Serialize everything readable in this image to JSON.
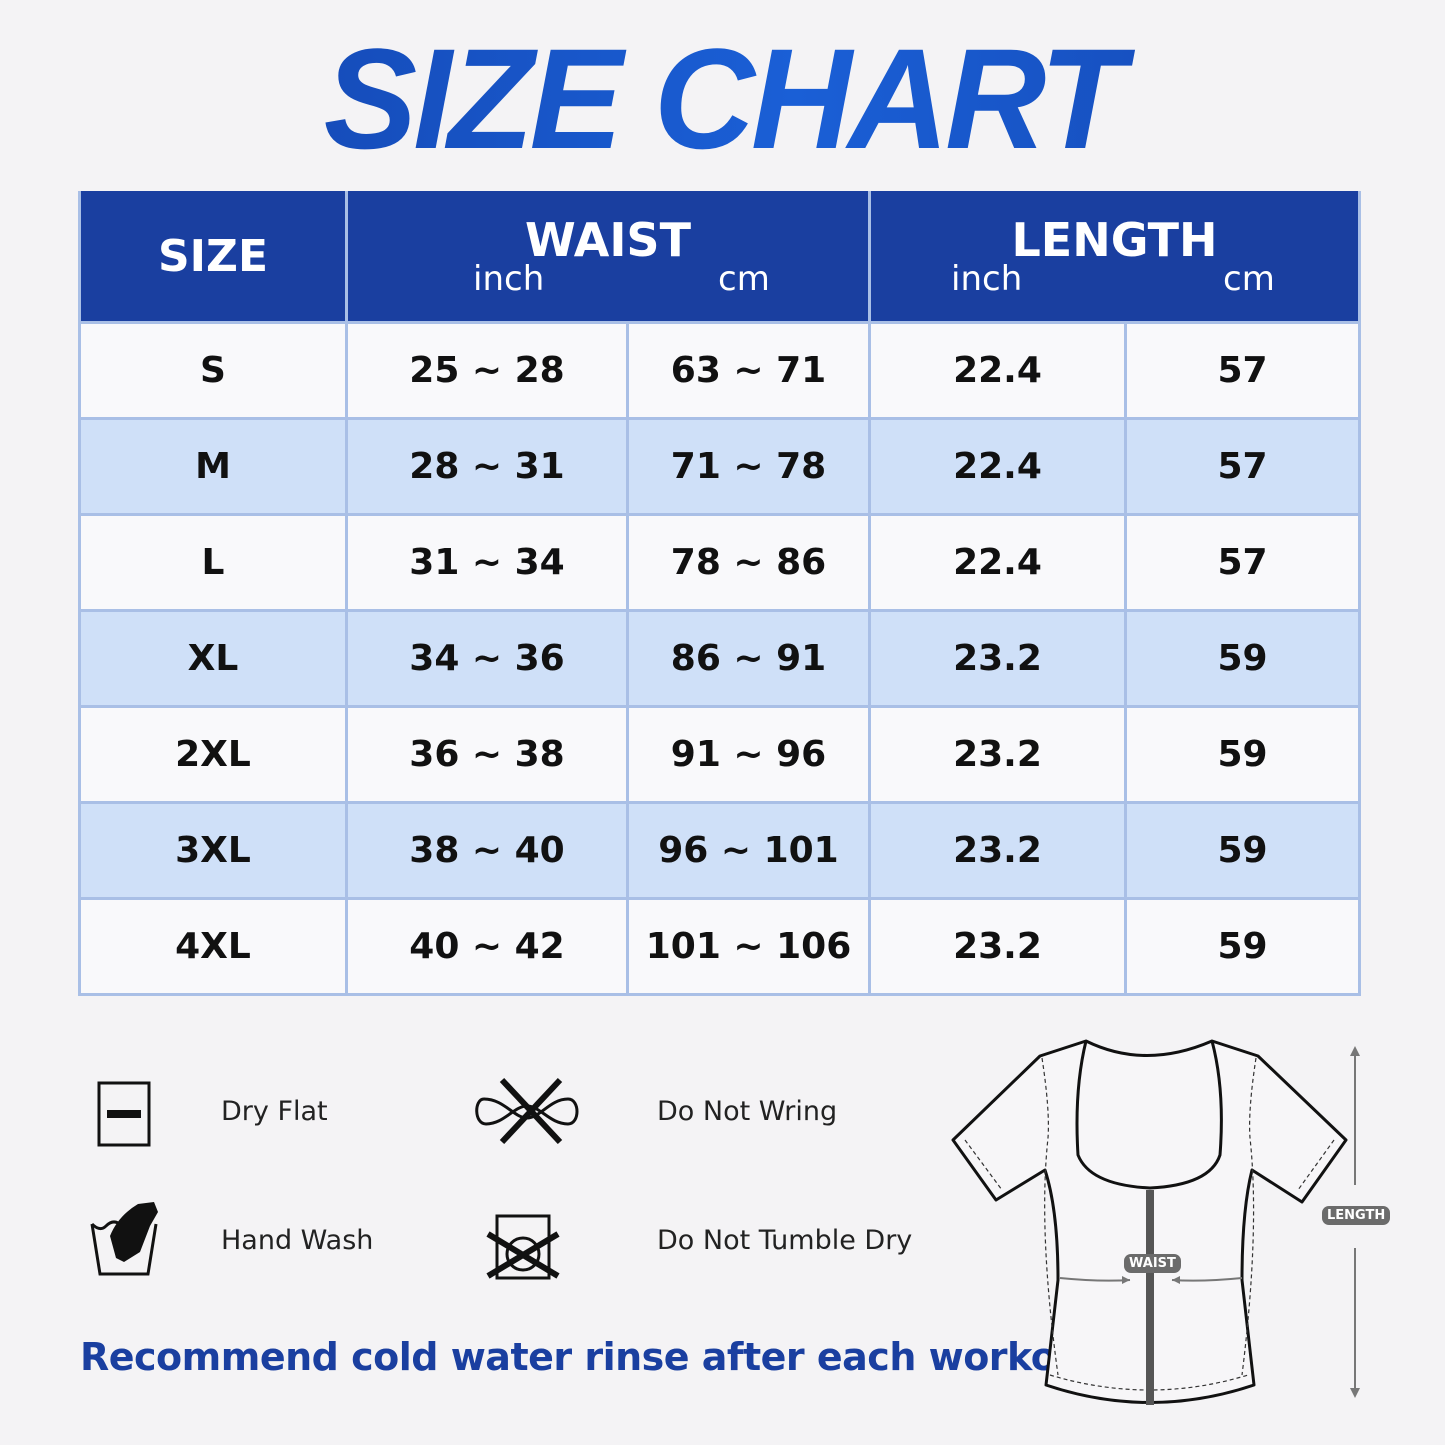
{
  "title": "SIZE CHART",
  "table": {
    "headers": {
      "size": "SIZE",
      "waist": "WAIST",
      "length": "LENGTH",
      "inch": "inch",
      "cm": "cm"
    },
    "rows": [
      {
        "size": "S",
        "waist_inch": "25 ~ 28",
        "waist_cm": "63 ~ 71",
        "length_inch": "22.4",
        "length_cm": "57"
      },
      {
        "size": "M",
        "waist_inch": "28 ~ 31",
        "waist_cm": "71 ~ 78",
        "length_inch": "22.4",
        "length_cm": "57"
      },
      {
        "size": "L",
        "waist_inch": "31 ~ 34",
        "waist_cm": "78 ~ 86",
        "length_inch": "22.4",
        "length_cm": "57"
      },
      {
        "size": "XL",
        "waist_inch": "34 ~ 36",
        "waist_cm": "86 ~ 91",
        "length_inch": "23.2",
        "length_cm": "59"
      },
      {
        "size": "2XL",
        "waist_inch": "36 ~ 38",
        "waist_cm": "91 ~ 96",
        "length_inch": "23.2",
        "length_cm": "59"
      },
      {
        "size": "3XL",
        "waist_inch": "38 ~ 40",
        "waist_cm": "96 ~ 101",
        "length_inch": "23.2",
        "length_cm": "59"
      },
      {
        "size": "4XL",
        "waist_inch": "40 ~ 42",
        "waist_cm": "101 ~ 106",
        "length_inch": "23.2",
        "length_cm": "59"
      }
    ]
  },
  "care": [
    {
      "icon": "dry-flat-icon",
      "label": "Dry Flat"
    },
    {
      "icon": "do-not-wring-icon",
      "label": "Do Not Wring"
    },
    {
      "icon": "hand-wash-icon",
      "label": "Hand Wash"
    },
    {
      "icon": "do-not-tumble-dry-icon",
      "label": "Do Not Tumble Dry"
    }
  ],
  "note": "Recommend cold water rinse after each workout.",
  "diagram": {
    "waist_label": "WAIST",
    "length_label": "LENGTH"
  },
  "colors": {
    "header": "#1a3fa0",
    "alt_row": "#cfe0f8",
    "border": "#a9bfe6"
  }
}
